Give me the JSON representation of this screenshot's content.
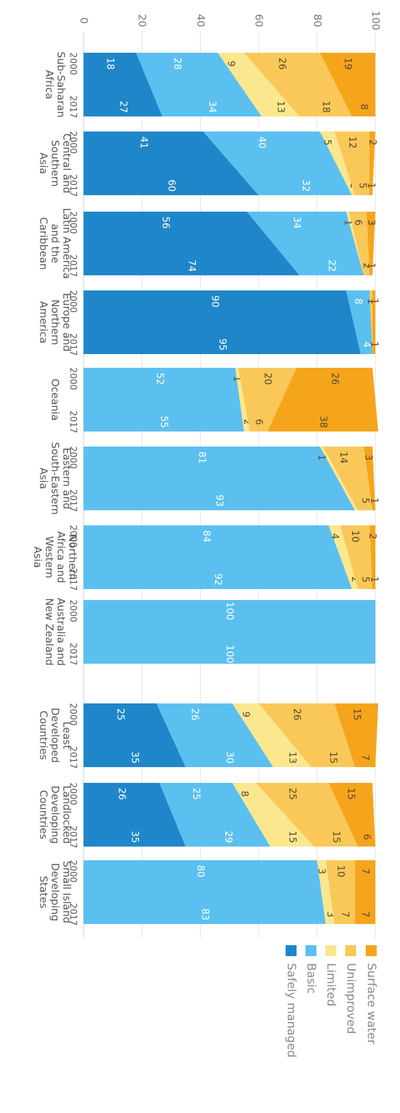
{
  "chart_data": {
    "type": "area",
    "orientation": "rotated-90-clockwise",
    "ylim": [
      0,
      100
    ],
    "y_ticks": [
      "0",
      "20",
      "40",
      "60",
      "80",
      "100"
    ],
    "years": [
      "2000",
      "2017"
    ],
    "series_order": [
      "Safely managed",
      "Basic",
      "Limited",
      "Unimproved",
      "Surface water"
    ],
    "legend": [
      {
        "name": "Surface water",
        "color": "#f5a51c"
      },
      {
        "name": "Unimproved",
        "color": "#fac858"
      },
      {
        "name": "Limited",
        "color": "#fbe78e"
      },
      {
        "name": "Basic",
        "color": "#5bc0ef"
      },
      {
        "name": "Safely managed",
        "color": "#1f87c9"
      }
    ],
    "regions": [
      {
        "label": [
          "Sub-Saharan",
          "Africa"
        ],
        "values": {
          "2000": [
            18,
            28,
            9,
            26,
            19
          ],
          "2017": [
            27,
            34,
            13,
            18,
            8
          ]
        }
      },
      {
        "label": [
          "Central and",
          "Southern",
          "Asia"
        ],
        "values": {
          "2000": [
            41,
            40,
            5,
            12,
            2
          ],
          "2017": [
            60,
            32,
            1,
            5,
            1
          ]
        }
      },
      {
        "label": [
          "Latin America",
          "and the",
          "Caribbean"
        ],
        "values": {
          "2000": [
            56,
            34,
            1,
            6,
            3
          ],
          "2017": [
            74,
            22,
            0,
            2,
            1
          ]
        }
      },
      {
        "label": [
          "Europe and",
          "Northern",
          "America"
        ],
        "values": {
          "2000": [
            90,
            8,
            0,
            1,
            1
          ],
          "2017": [
            95,
            4,
            0,
            0,
            1
          ]
        }
      },
      {
        "label": [
          "Oceania"
        ],
        "values": {
          "2000": [
            0,
            52,
            1,
            20,
            26
          ],
          "2017": [
            0,
            55,
            2,
            6,
            38
          ]
        }
      },
      {
        "label": [
          "Eastern and",
          "South-Eastern",
          "Asia"
        ],
        "values": {
          "2000": [
            0,
            81,
            1,
            14,
            3
          ],
          "2017": [
            0,
            93,
            1,
            5,
            1
          ]
        }
      },
      {
        "label": [
          "Northern",
          "Africa and",
          "Western",
          "Asia"
        ],
        "values": {
          "2000": [
            0,
            84,
            4,
            10,
            2
          ],
          "2017": [
            0,
            92,
            2,
            5,
            1
          ]
        }
      },
      {
        "label": [
          "Australia and",
          "New Zealand"
        ],
        "values": {
          "2000": [
            0,
            100,
            0,
            0,
            0
          ],
          "2017": [
            0,
            100,
            0,
            0,
            0
          ]
        }
      },
      {
        "label": [
          "Least",
          "Developed",
          "Countries"
        ],
        "values": {
          "2000": [
            25,
            26,
            9,
            26,
            15
          ],
          "2017": [
            35,
            30,
            13,
            15,
            7
          ]
        }
      },
      {
        "label": [
          "Landlocked",
          "Developing",
          "Countries"
        ],
        "values": {
          "2000": [
            26,
            25,
            8,
            25,
            15
          ],
          "2017": [
            35,
            29,
            15,
            15,
            6
          ]
        }
      },
      {
        "label": [
          "Small Island",
          "Developing",
          "States"
        ],
        "values": {
          "2000": [
            0,
            80,
            3,
            10,
            7
          ],
          "2017": [
            0,
            83,
            3,
            7,
            7
          ]
        }
      }
    ]
  }
}
